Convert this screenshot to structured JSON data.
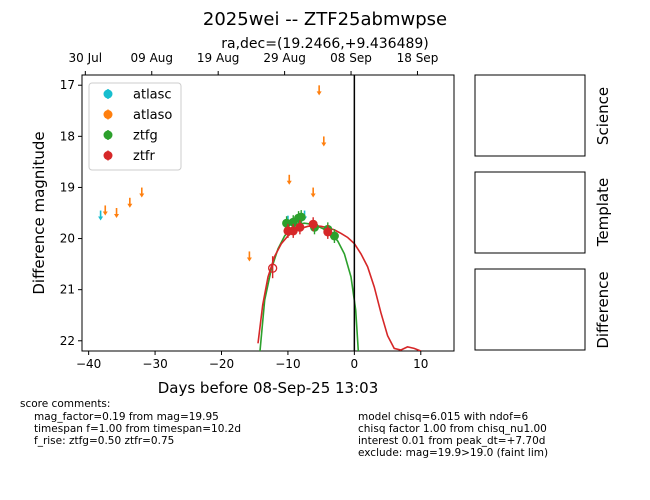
{
  "chart_data": {
    "type": "scatter",
    "title": "2025wei -- ZTF25abmwpse",
    "subtitle": "ra,dec=(19.2466,+9.436489)",
    "xlabel": "Days before 08-Sep-25 13:03",
    "ylabel": "Difference magnitude",
    "xlim": [
      -41,
      15
    ],
    "ylim": [
      22.2,
      16.8
    ],
    "x_ticks": [
      -40,
      -30,
      -20,
      -10,
      0,
      10
    ],
    "y_ticks": [
      17,
      18,
      19,
      20,
      21,
      22
    ],
    "top_axis_ticks": [
      {
        "x": -40.5,
        "label": "30 Jul"
      },
      {
        "x": -30.5,
        "label": "09 Aug"
      },
      {
        "x": -20.5,
        "label": "19 Aug"
      },
      {
        "x": -10.5,
        "label": "29 Aug"
      },
      {
        "x": -0.5,
        "label": "08 Sep"
      },
      {
        "x": 9.5,
        "label": "18 Sep"
      }
    ],
    "reference_line_x": 0,
    "legend": {
      "placement": "top-left",
      "entries": [
        "atlasc",
        "atlaso",
        "ztfg",
        "ztfr"
      ]
    },
    "colors": {
      "atlasc": "#17becf",
      "atlaso": "#ff7f0e",
      "ztfg": "#2ca02c",
      "ztfr": "#d62728"
    },
    "upper_limits": [
      {
        "series": "atlasc",
        "x": -38.2,
        "y": 19.55
      },
      {
        "series": "atlasc",
        "x": -10.0,
        "y": 19.65
      },
      {
        "series": "atlasc",
        "x": -7.5,
        "y": 19.55
      },
      {
        "series": "atlaso",
        "x": -37.5,
        "y": 19.45
      },
      {
        "series": "atlaso",
        "x": -35.8,
        "y": 19.5
      },
      {
        "series": "atlaso",
        "x": -33.8,
        "y": 19.3
      },
      {
        "series": "atlaso",
        "x": -32.0,
        "y": 19.1
      },
      {
        "series": "atlaso",
        "x": -15.8,
        "y": 20.35
      },
      {
        "series": "atlaso",
        "x": -9.8,
        "y": 18.85
      },
      {
        "series": "atlaso",
        "x": -6.2,
        "y": 19.1
      },
      {
        "series": "atlaso",
        "x": -5.3,
        "y": 17.1
      },
      {
        "series": "atlaso",
        "x": -4.6,
        "y": 18.1
      }
    ],
    "series": [
      {
        "name": "ztfg",
        "points": [
          {
            "x": -10.2,
            "y": 19.7
          },
          {
            "x": -9.2,
            "y": 19.68
          },
          {
            "x": -8.4,
            "y": 19.6
          },
          {
            "x": -8.0,
            "y": 19.58
          },
          {
            "x": -6.0,
            "y": 19.78
          },
          {
            "x": -4.0,
            "y": 19.82
          },
          {
            "x": -3.0,
            "y": 19.95
          }
        ]
      },
      {
        "name": "ztfr",
        "points": [
          {
            "x": -10.0,
            "y": 19.85
          },
          {
            "x": -9.2,
            "y": 19.85
          },
          {
            "x": -8.2,
            "y": 19.78
          },
          {
            "x": -6.2,
            "y": 19.72
          },
          {
            "x": -4.0,
            "y": 19.87
          }
        ]
      }
    ],
    "ztfr_nondetection": {
      "x": -12.3,
      "y": 20.58
    },
    "models": [
      {
        "series": "ztfg",
        "points": [
          [
            -14.2,
            22.2
          ],
          [
            -13.5,
            21.2
          ],
          [
            -12.5,
            20.6
          ],
          [
            -11.5,
            20.2
          ],
          [
            -10.5,
            19.95
          ],
          [
            -9.5,
            19.8
          ],
          [
            -8.5,
            19.72
          ],
          [
            -7.5,
            19.7
          ],
          [
            -6.5,
            19.72
          ],
          [
            -5.5,
            19.76
          ],
          [
            -4.5,
            19.82
          ],
          [
            -3.5,
            19.9
          ],
          [
            -2.5,
            20.05
          ],
          [
            -1.5,
            20.3
          ],
          [
            -0.5,
            20.75
          ],
          [
            0.2,
            21.4
          ],
          [
            0.6,
            22.2
          ]
        ]
      },
      {
        "series": "ztfr",
        "points": [
          [
            -14.5,
            22.05
          ],
          [
            -13.8,
            21.3
          ],
          [
            -13.0,
            20.75
          ],
          [
            -12.0,
            20.35
          ],
          [
            -11.0,
            20.1
          ],
          [
            -10.0,
            19.95
          ],
          [
            -9.0,
            19.85
          ],
          [
            -8.0,
            19.8
          ],
          [
            -7.0,
            19.76
          ],
          [
            -6.0,
            19.75
          ],
          [
            -5.0,
            19.76
          ],
          [
            -4.0,
            19.79
          ],
          [
            -3.0,
            19.83
          ],
          [
            -2.0,
            19.9
          ],
          [
            -1.0,
            19.98
          ],
          [
            0.0,
            20.1
          ],
          [
            1.0,
            20.3
          ],
          [
            2.0,
            20.55
          ],
          [
            3.0,
            20.95
          ],
          [
            4.0,
            21.45
          ],
          [
            5.0,
            21.9
          ],
          [
            6.0,
            22.15
          ],
          [
            7.0,
            22.18
          ],
          [
            8.0,
            22.12
          ],
          [
            9.0,
            22.15
          ],
          [
            10.0,
            22.2
          ]
        ]
      }
    ]
  },
  "side_panels": [
    "Science",
    "Template",
    "Difference"
  ],
  "score_comments": {
    "heading": "score comments:",
    "lines": [
      "mag_factor=0.19 from mag=19.95",
      "timespan f=1.00 from timespan=10.2d",
      "f_rise: ztfg=0.50 ztfr=0.75"
    ]
  },
  "model_comments": [
    "model chisq=6.015 with ndof=6",
    "chisq factor 1.00 from chisq_nu1.00",
    "interest 0.01 from peak_dt=+7.70d",
    "exclude: mag=19.9>19.0 (faint lim)"
  ]
}
